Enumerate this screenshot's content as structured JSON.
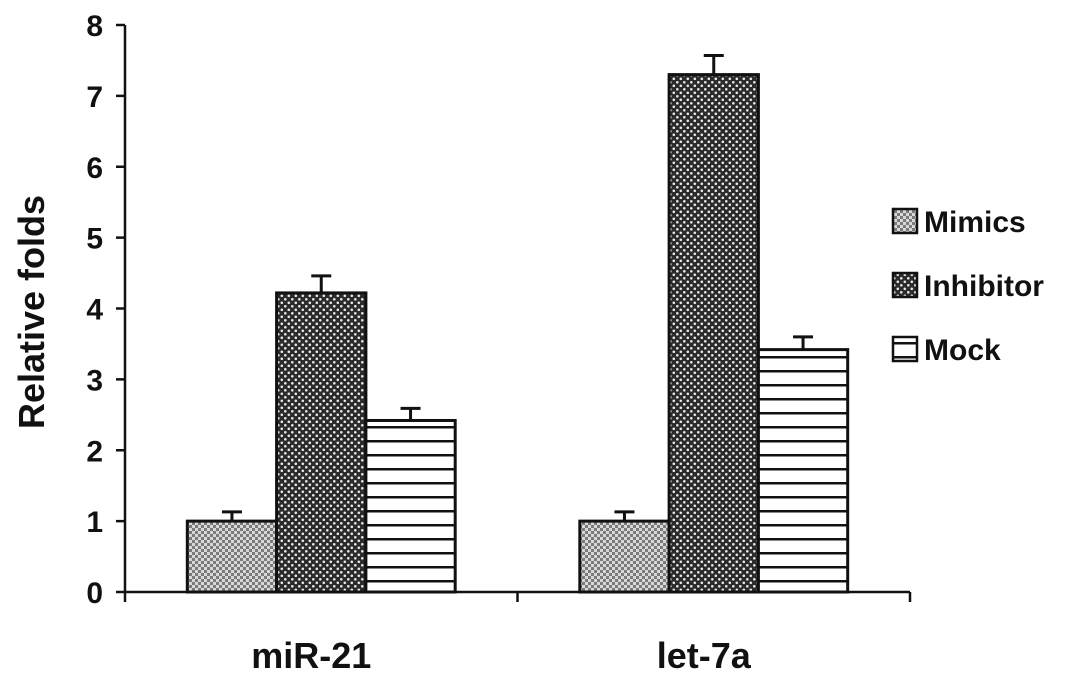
{
  "chart_data": {
    "type": "bar",
    "title": "",
    "xlabel": "",
    "ylabel": "Relative folds",
    "categories": [
      "miR-21",
      "let-7a"
    ],
    "ylim": [
      0,
      8
    ],
    "yticks": [
      0,
      1,
      2,
      3,
      4,
      5,
      6,
      7,
      8
    ],
    "grid": false,
    "legend_position": "right",
    "series": [
      {
        "name": "Mimics",
        "values": [
          1.0,
          1.0
        ],
        "errors": [
          0.13,
          0.13
        ],
        "pattern": "dots-light"
      },
      {
        "name": "Inhibitor",
        "values": [
          4.22,
          7.3
        ],
        "errors": [
          0.24,
          0.27
        ],
        "pattern": "dots-dark"
      },
      {
        "name": "Mock",
        "values": [
          2.42,
          3.42
        ],
        "errors": [
          0.17,
          0.18
        ],
        "pattern": "horizontal-lines"
      }
    ]
  }
}
